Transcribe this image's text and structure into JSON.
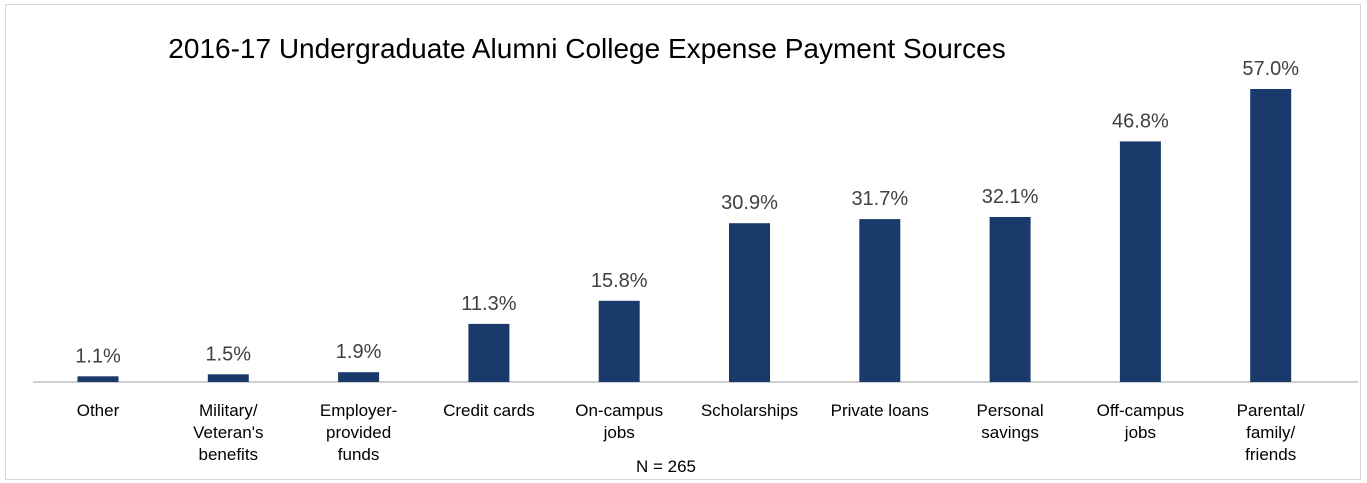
{
  "chart_data": {
    "type": "bar",
    "title": "2016-17 Undergraduate Alumni College Expense Payment Sources",
    "note": "N = 265",
    "categories": [
      [
        "Other"
      ],
      [
        "Military/",
        "Veteran's",
        "benefits"
      ],
      [
        "Employer-",
        "provided",
        "funds"
      ],
      [
        "Credit cards"
      ],
      [
        "On-campus",
        "jobs"
      ],
      [
        "Scholarships"
      ],
      [
        "Private loans"
      ],
      [
        "Personal",
        "savings"
      ],
      [
        "Off-campus",
        "jobs"
      ],
      [
        "Parental/",
        "family/",
        "friends"
      ]
    ],
    "values": [
      1.1,
      1.5,
      1.9,
      11.3,
      15.8,
      30.9,
      31.7,
      32.1,
      46.8,
      57.0
    ],
    "value_labels": [
      "1.1%",
      "1.5%",
      "1.9%",
      "11.3%",
      "15.8%",
      "30.9%",
      "31.7%",
      "32.1%",
      "46.8%",
      "57.0%"
    ],
    "ylim": [
      0,
      57
    ],
    "grid": false,
    "legend": "none",
    "bar_color": "#1a3a6b",
    "axis_color": "#bfbfbf"
  }
}
